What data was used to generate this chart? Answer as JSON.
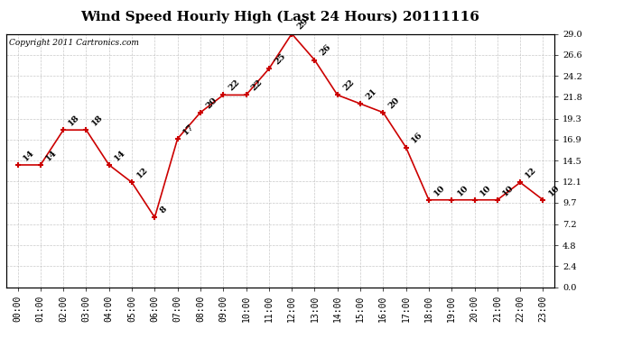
{
  "title": "Wind Speed Hourly High (Last 24 Hours) 20111116",
  "copyright": "Copyright 2011 Cartronics.com",
  "hours": [
    "00:00",
    "01:00",
    "02:00",
    "03:00",
    "04:00",
    "05:00",
    "06:00",
    "07:00",
    "08:00",
    "09:00",
    "10:00",
    "11:00",
    "12:00",
    "13:00",
    "14:00",
    "15:00",
    "16:00",
    "17:00",
    "18:00",
    "19:00",
    "20:00",
    "21:00",
    "22:00",
    "23:00"
  ],
  "values": [
    14,
    14,
    18,
    18,
    14,
    12,
    8,
    17,
    20,
    22,
    22,
    25,
    29,
    26,
    22,
    21,
    20,
    16,
    10,
    10,
    10,
    10,
    12,
    10
  ],
  "line_color": "#cc0000",
  "marker_color": "#cc0000",
  "background_color": "#ffffff",
  "grid_color": "#bbbbbb",
  "yticks": [
    0.0,
    2.4,
    4.8,
    7.2,
    9.7,
    12.1,
    14.5,
    16.9,
    19.3,
    21.8,
    24.2,
    26.6,
    29.0
  ],
  "ylim": [
    0.0,
    29.0
  ],
  "title_fontsize": 11,
  "label_fontsize": 7,
  "annotation_fontsize": 7
}
